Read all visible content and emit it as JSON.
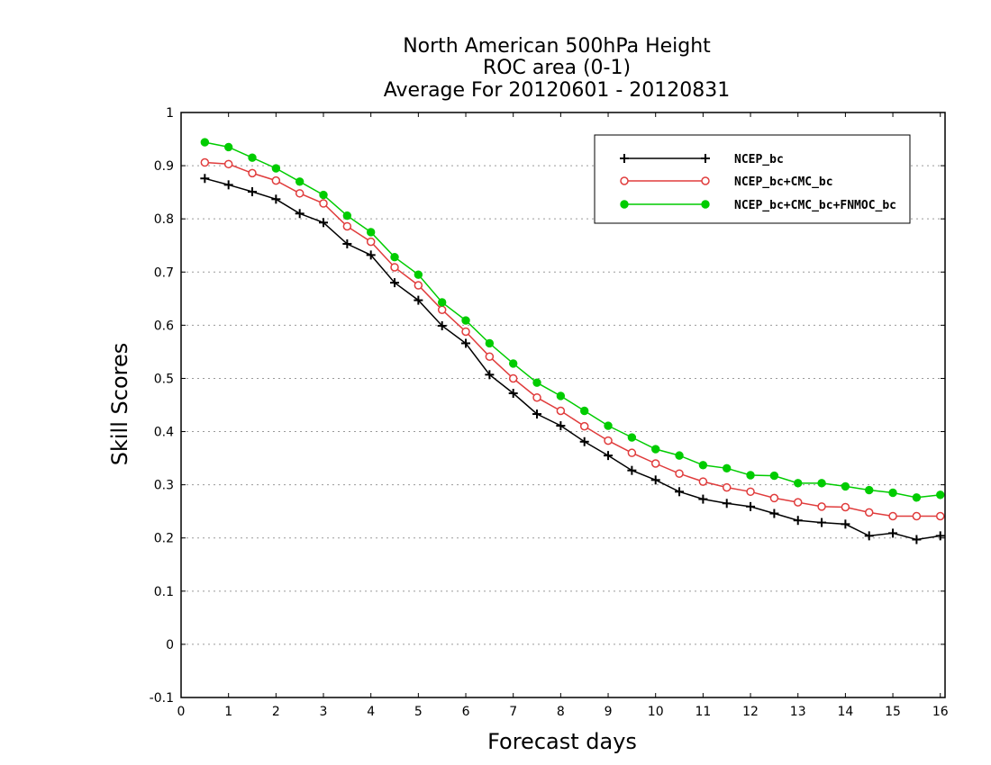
{
  "chart_data": {
    "type": "line",
    "title_lines": [
      "North American 500hPa Height",
      "ROC area (0-1)",
      "Average For 20120601 - 20120831"
    ],
    "xlabel": "Forecast days",
    "ylabel": "Skill Scores",
    "xlim": [
      0,
      16.1
    ],
    "ylim": [
      -0.1,
      1
    ],
    "xticks": [
      0,
      1,
      2,
      3,
      4,
      5,
      6,
      7,
      8,
      9,
      10,
      11,
      12,
      13,
      14,
      15,
      16
    ],
    "yticks": [
      -0.1,
      0,
      0.1,
      0.2,
      0.3,
      0.4,
      0.5,
      0.6,
      0.7,
      0.8,
      0.9,
      1
    ],
    "ytick_labels": [
      "-0.1",
      "0",
      "0.1",
      "0.2",
      "0.3",
      "0.4",
      "0.5",
      "0.6",
      "0.7",
      "0.8",
      "0.9",
      "1"
    ],
    "grid": true,
    "legend_position": "top-right",
    "x": [
      0.5,
      1.0,
      1.5,
      2.0,
      2.5,
      3.0,
      3.5,
      4.0,
      4.5,
      5.0,
      5.5,
      6.0,
      6.5,
      7.0,
      7.5,
      8.0,
      8.5,
      9.0,
      9.5,
      10.0,
      10.5,
      11.0,
      11.5,
      12.0,
      12.5,
      13.0,
      13.5,
      14.0,
      14.5,
      15.0,
      15.5,
      16.0
    ],
    "series": [
      {
        "name": "NCEP_bc",
        "color": "#000000",
        "marker": "plus",
        "values": [
          0.876,
          0.864,
          0.851,
          0.837,
          0.81,
          0.793,
          0.753,
          0.732,
          0.68,
          0.647,
          0.599,
          0.566,
          0.507,
          0.472,
          0.433,
          0.411,
          0.381,
          0.355,
          0.327,
          0.309,
          0.287,
          0.273,
          0.265,
          0.259,
          0.246,
          0.233,
          0.229,
          0.226,
          0.204,
          0.209,
          0.197,
          0.204
        ]
      },
      {
        "name": "NCEP_bc+CMC_bc",
        "color": "#e03c3c",
        "marker": "open-circle",
        "values": [
          0.906,
          0.903,
          0.886,
          0.872,
          0.848,
          0.829,
          0.786,
          0.757,
          0.709,
          0.675,
          0.629,
          0.588,
          0.541,
          0.5,
          0.464,
          0.439,
          0.41,
          0.383,
          0.36,
          0.34,
          0.321,
          0.306,
          0.295,
          0.287,
          0.275,
          0.267,
          0.259,
          0.258,
          0.248,
          0.241,
          0.241,
          0.241
        ]
      },
      {
        "name": "NCEP_bc+CMC_bc+FNMOC_bc",
        "color": "#00cc00",
        "marker": "filled-circle",
        "values": [
          0.944,
          0.935,
          0.915,
          0.895,
          0.87,
          0.845,
          0.806,
          0.775,
          0.728,
          0.695,
          0.643,
          0.609,
          0.566,
          0.528,
          0.492,
          0.467,
          0.439,
          0.411,
          0.389,
          0.367,
          0.355,
          0.337,
          0.331,
          0.318,
          0.317,
          0.303,
          0.303,
          0.297,
          0.29,
          0.285,
          0.276,
          0.281
        ]
      }
    ]
  }
}
